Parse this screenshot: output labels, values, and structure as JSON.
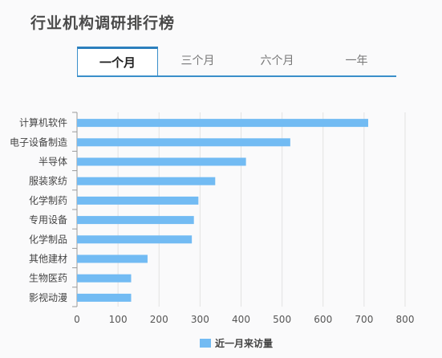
{
  "header": {
    "title": "行业机构调研排行榜"
  },
  "tabs": [
    {
      "label": "一个月",
      "active": true
    },
    {
      "label": "三个月",
      "active": false
    },
    {
      "label": "六个月",
      "active": false
    },
    {
      "label": "一年",
      "active": false
    }
  ],
  "colors": {
    "bar": "#72bbf3",
    "accent": "#3a8fca"
  },
  "chart_data": {
    "type": "bar",
    "orientation": "horizontal",
    "categories": [
      "计算机软件",
      "电子设备制造",
      "半导体",
      "服装家纺",
      "化学制药",
      "专用设备",
      "化学制品",
      "其他建材",
      "生物医药",
      "影视动漫"
    ],
    "series": [
      {
        "name": "近一月来访量",
        "values": [
          710,
          520,
          412,
          337,
          296,
          285,
          280,
          172,
          132,
          132
        ]
      }
    ],
    "xlim": [
      0,
      800
    ],
    "xticks": [
      "0",
      "100",
      "200",
      "300",
      "400",
      "500",
      "600",
      "700",
      "800"
    ],
    "grid": true,
    "legend_position": "bottom"
  }
}
